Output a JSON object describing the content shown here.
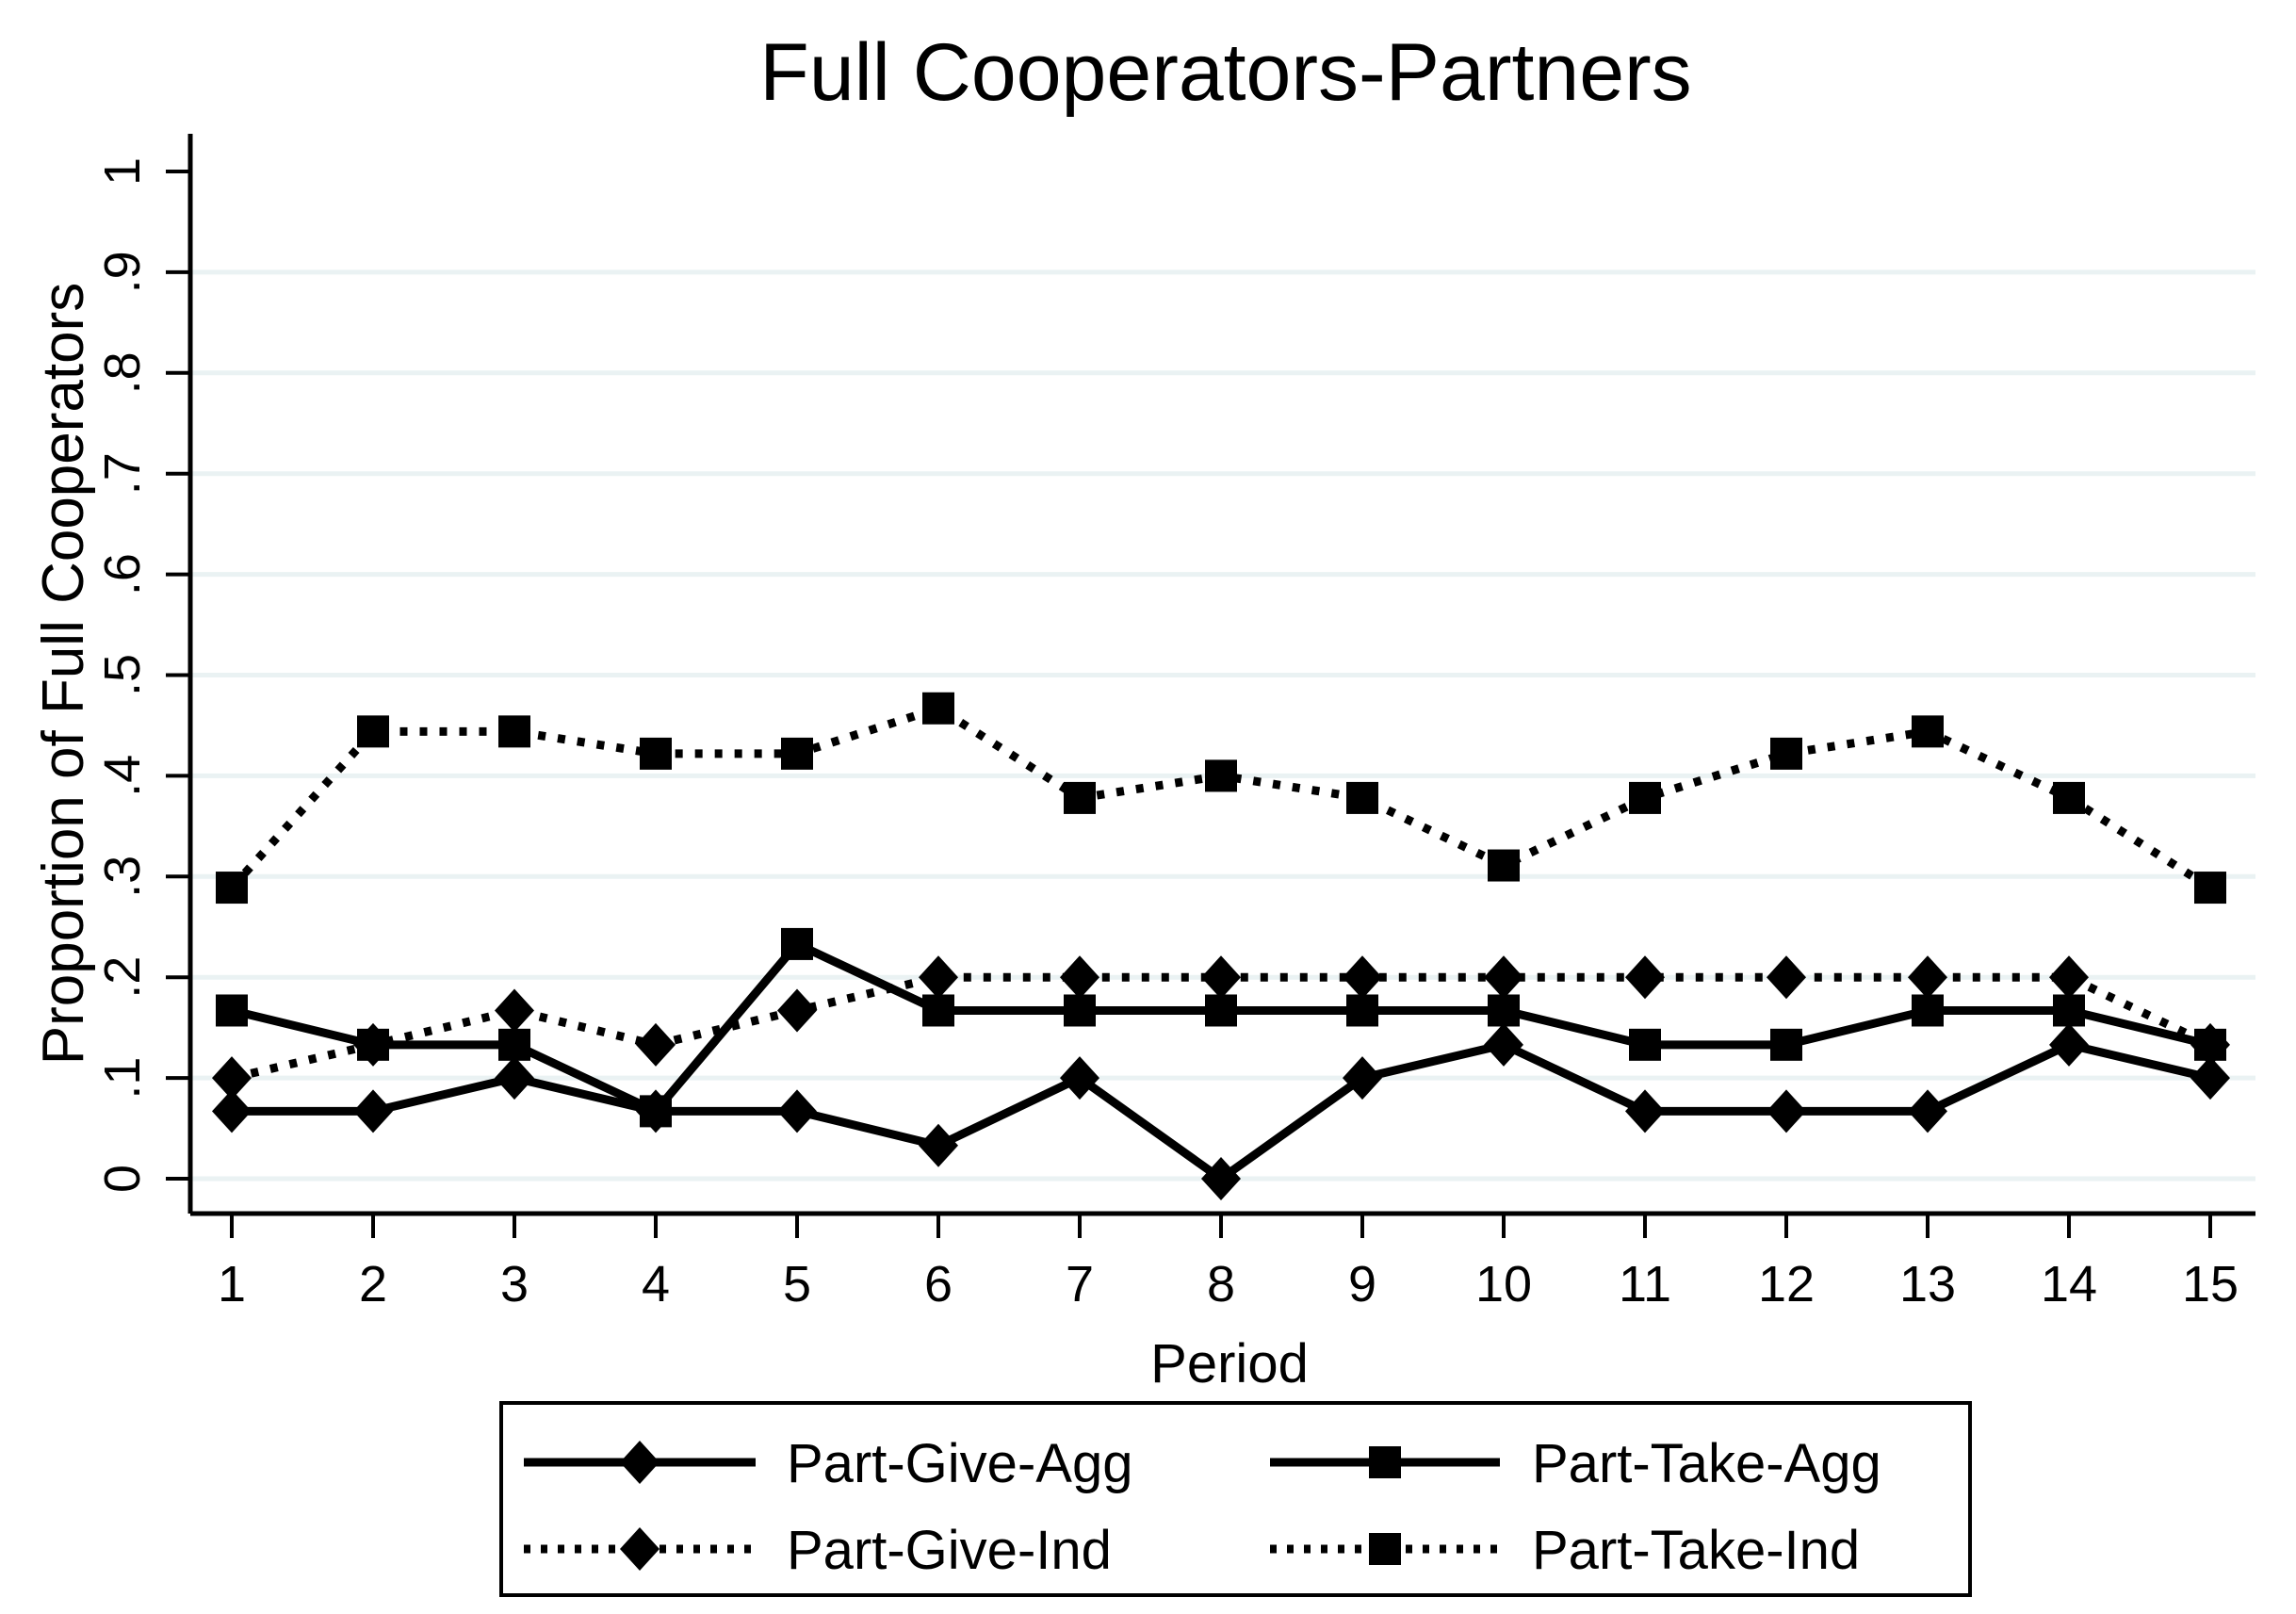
{
  "chart_data": {
    "type": "line",
    "title": "Full Cooperators-Partners",
    "xlabel": "Period",
    "ylabel": "Proportion of Full Cooperators",
    "x": [
      1,
      2,
      3,
      4,
      5,
      6,
      7,
      8,
      9,
      10,
      11,
      12,
      13,
      14,
      15
    ],
    "ylim": [
      0,
      1
    ],
    "xlim": [
      1,
      15
    ],
    "y_ticks": [
      0,
      0.1,
      0.2,
      0.3,
      0.4,
      0.5,
      0.6,
      0.7,
      0.8,
      0.9,
      1
    ],
    "y_tick_labels": [
      "0",
      ".1",
      ".2",
      ".3",
      ".4",
      ".5",
      ".6",
      ".7",
      ".8",
      ".9",
      "1"
    ],
    "y_grid": [
      0,
      0.1,
      0.2,
      0.3,
      0.4,
      0.5,
      0.6,
      0.7,
      0.8,
      0.9
    ],
    "grid": "horizontal",
    "legend_position": "bottom",
    "series": [
      {
        "name": "Part-Give-Agg",
        "line": "solid",
        "marker": "diamond",
        "values": [
          0.067,
          0.067,
          0.1,
          0.067,
          0.067,
          0.033,
          0.1,
          0,
          0.1,
          0.133,
          0.067,
          0.067,
          0.067,
          0.133,
          0.1
        ]
      },
      {
        "name": "Part-Take-Agg",
        "line": "solid",
        "marker": "square",
        "values": [
          0.167,
          0.133,
          0.133,
          0.067,
          0.233,
          0.167,
          0.167,
          0.167,
          0.167,
          0.167,
          0.133,
          0.133,
          0.167,
          0.167,
          0.133
        ]
      },
      {
        "name": "Part-Give-Ind",
        "line": "dotted",
        "marker": "diamond",
        "values": [
          0.1,
          0.133,
          0.167,
          0.133,
          0.167,
          0.2,
          0.2,
          0.2,
          0.2,
          0.2,
          0.2,
          0.2,
          0.2,
          0.2,
          0.133
        ]
      },
      {
        "name": "Part-Take-Ind",
        "line": "dotted",
        "marker": "square",
        "values": [
          0.289,
          0.444,
          0.444,
          0.422,
          0.422,
          0.467,
          0.378,
          0.4,
          0.378,
          0.311,
          0.378,
          0.422,
          0.444,
          0.378,
          0.289
        ]
      }
    ],
    "colors": {
      "series": "#000000",
      "grid": "#eaf2f3",
      "background": "#ffffff",
      "text": "#000000"
    }
  }
}
